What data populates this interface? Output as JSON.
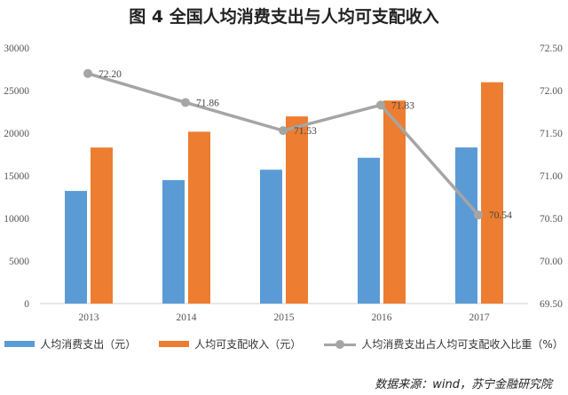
{
  "chart_data": {
    "type": "bar",
    "title": "图 4 全国人均消费支出与人均可支配收入",
    "categories": [
      "2013",
      "2014",
      "2015",
      "2016",
      "2017"
    ],
    "series": [
      {
        "name": "人均消费支出（元）",
        "axis": "left",
        "kind": "bar",
        "color": "#5b9bd5",
        "values": [
          13220,
          14491,
          15712,
          17111,
          18322
        ]
      },
      {
        "name": "人均可支配收入（元）",
        "axis": "left",
        "kind": "bar",
        "color": "#ed7d31",
        "values": [
          18311,
          20167,
          21966,
          23821,
          25974
        ]
      },
      {
        "name": "人均消费支出占人均可支配收入比重（%）",
        "axis": "right",
        "kind": "line",
        "color": "#a5a5a5",
        "values": [
          72.2,
          71.86,
          71.53,
          71.83,
          70.54
        ],
        "labels": [
          "72.20",
          "71.86",
          "71.53",
          "71.83",
          "70.54"
        ]
      }
    ],
    "y_left": {
      "min": 0,
      "max": 30000,
      "ticks": [
        0,
        5000,
        10000,
        15000,
        20000,
        25000,
        30000
      ],
      "tick_labels": [
        "0",
        "5000",
        "10000",
        "15000",
        "20000",
        "25000",
        "30000"
      ]
    },
    "y_right": {
      "min": 69.5,
      "max": 72.5,
      "ticks": [
        69.5,
        70.0,
        70.5,
        71.0,
        71.5,
        72.0,
        72.5
      ],
      "tick_labels": [
        "69.50",
        "70.00",
        "70.50",
        "71.00",
        "71.50",
        "72.00",
        "72.50"
      ]
    },
    "grid": false,
    "legend_position": "bottom"
  },
  "source": "数据来源：wind，苏宁金融研究院"
}
